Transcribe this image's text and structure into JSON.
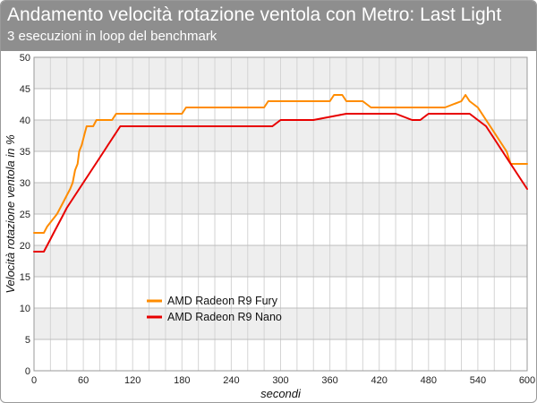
{
  "header": {
    "title": "Andamento velocità rotazione ventola con Metro: Last Light",
    "subtitle": "3 esecuzioni in loop del benchmark"
  },
  "chart_data": {
    "type": "line",
    "title": "Andamento velocità rotazione ventola con Metro: Last Light",
    "subtitle": "3 esecuzioni in loop del benchmark",
    "xlabel": "secondi",
    "ylabel": "Velocità rotazione ventola in %",
    "xlim": [
      0,
      600
    ],
    "ylim": [
      0,
      50
    ],
    "xticks": [
      0,
      60,
      120,
      180,
      240,
      300,
      360,
      420,
      480,
      540,
      600
    ],
    "yticks": [
      0,
      5,
      10,
      15,
      20,
      25,
      30,
      35,
      40,
      45,
      50
    ],
    "grid": true,
    "legend_position": "lower-left",
    "series": [
      {
        "name": "AMD Radeon R9 Fury",
        "color": "#ff8c00",
        "x": [
          0,
          12,
          16,
          22,
          28,
          32,
          36,
          40,
          44,
          47,
          50,
          53,
          55,
          58,
          60,
          62,
          64,
          68,
          72,
          76,
          80,
          85,
          90,
          95,
          100,
          105,
          180,
          185,
          200,
          240,
          280,
          285,
          330,
          360,
          365,
          375,
          380,
          385,
          400,
          410,
          440,
          455,
          500,
          520,
          525,
          530,
          540,
          550,
          560,
          570,
          575,
          580,
          592,
          600
        ],
        "values": [
          22,
          22,
          23,
          24,
          25,
          26,
          27,
          28,
          29,
          30,
          32,
          33,
          35,
          36,
          37,
          38,
          39,
          39,
          39,
          40,
          40,
          40,
          40,
          40,
          41,
          41,
          41,
          42,
          42,
          42,
          42,
          43,
          43,
          43,
          44,
          44,
          43,
          43,
          43,
          42,
          42,
          42,
          42,
          43,
          44,
          43,
          42,
          40,
          38,
          36,
          35,
          33,
          33,
          33
        ]
      },
      {
        "name": "AMD Radeon R9 Nano",
        "color": "#e80000",
        "x": [
          0,
          12,
          16,
          20,
          24,
          28,
          32,
          36,
          40,
          45,
          50,
          55,
          60,
          65,
          70,
          75,
          80,
          85,
          90,
          95,
          100,
          105,
          110,
          200,
          250,
          280,
          290,
          300,
          340,
          380,
          390,
          420,
          440,
          460,
          470,
          480,
          500,
          520,
          530,
          540,
          550,
          560,
          570,
          580,
          590,
          600
        ],
        "values": [
          19,
          19,
          20,
          21,
          22,
          23,
          24,
          25,
          26,
          27,
          28,
          29,
          30,
          31,
          32,
          33,
          34,
          35,
          36,
          37,
          38,
          39,
          39,
          39,
          39,
          39,
          39,
          40,
          40,
          41,
          41,
          41,
          41,
          40,
          40,
          41,
          41,
          41,
          41,
          40,
          39,
          37,
          35,
          33,
          31,
          29
        ]
      }
    ]
  }
}
